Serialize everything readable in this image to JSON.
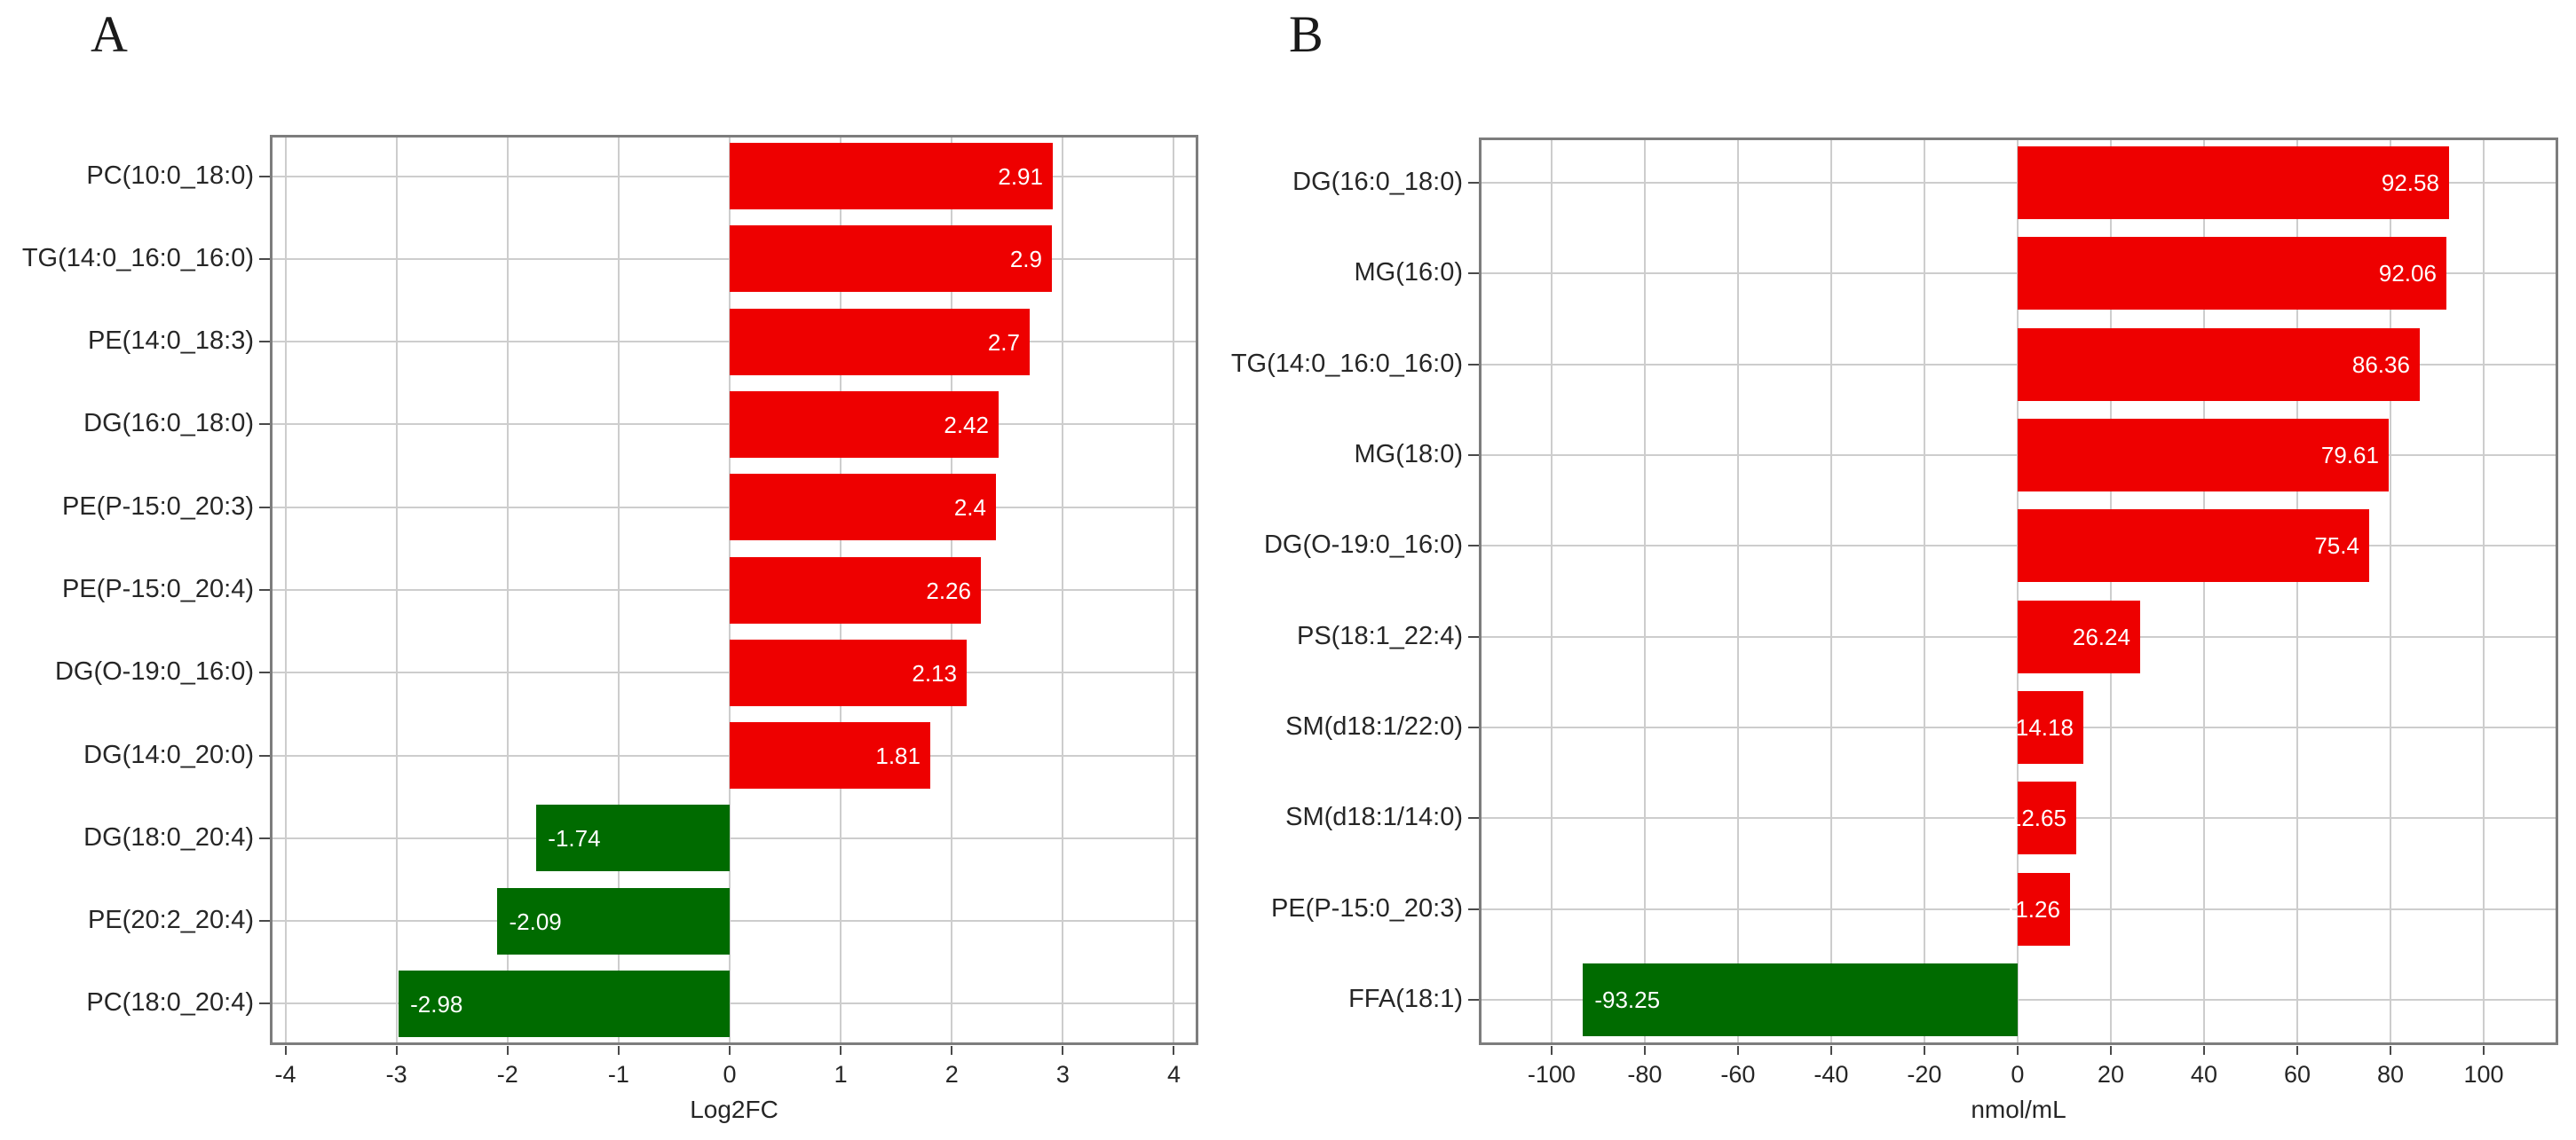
{
  "figure_type": "two-panel horizontal bar chart",
  "style": {
    "background_color": "#ffffff",
    "grid_color": "#cdcdcd",
    "frame_color": "#7d7d7d",
    "tick_color": "#4a4a4a",
    "text_color": "#262626",
    "bar_label_color": "#ffffff"
  },
  "chart_data": [
    {
      "type": "bar",
      "orientation": "horizontal",
      "title": "A",
      "xlabel": "Log2FC",
      "categories": [
        "PC(10:0_18:0)",
        "TG(14:0_16:0_16:0)",
        "PE(14:0_18:3)",
        "DG(16:0_18:0)",
        "PE(P-15:0_20:3)",
        "PE(P-15:0_20:4)",
        "DG(O-19:0_16:0)",
        "DG(14:0_20:0)",
        "DG(18:0_20:4)",
        "PE(20:2_20:4)",
        "PC(18:0_20:4)"
      ],
      "values": [
        2.91,
        2.9,
        2.7,
        2.42,
        2.4,
        2.26,
        2.13,
        1.81,
        -1.74,
        -2.09,
        -2.98
      ],
      "value_labels": [
        "2.91",
        "2.9",
        "2.7",
        "2.42",
        "2.4",
        "2.26",
        "2.13",
        "1.81",
        "-1.74",
        "-2.09",
        "-2.98"
      ],
      "x_ticks": [
        -4,
        -3,
        -2,
        -1,
        0,
        1,
        2,
        3,
        4
      ],
      "x_tick_labels": [
        "-4",
        "-3",
        "-2",
        "-1",
        "0",
        "1",
        "2",
        "3",
        "4"
      ],
      "xlim": [
        -4.14,
        4.22
      ],
      "grid": true,
      "legend_position": "none",
      "positive_color": "#ee0000",
      "negative_color": "#006b00"
    },
    {
      "type": "bar",
      "orientation": "horizontal",
      "title": "B",
      "xlabel": "nmol/mL",
      "categories": [
        "DG(16:0_18:0)",
        "MG(16:0)",
        "TG(14:0_16:0_16:0)",
        "MG(18:0)",
        "DG(O-19:0_16:0)",
        "PS(18:1_22:4)",
        "SM(d18:1/22:0)",
        "SM(d18:1/14:0)",
        "PE(P-15:0_20:3)",
        "FFA(18:1)"
      ],
      "values": [
        92.58,
        92.06,
        86.36,
        79.61,
        75.4,
        26.24,
        14.18,
        12.65,
        11.26,
        -93.25
      ],
      "value_labels": [
        "92.58",
        "92.06",
        "86.36",
        "79.61",
        "75.4",
        "26.24",
        "14.18",
        "12.65",
        "11.26",
        "-93.25"
      ],
      "x_ticks": [
        -100,
        -80,
        -60,
        -40,
        -20,
        0,
        20,
        40,
        60,
        80,
        100
      ],
      "x_tick_labels": [
        "-100",
        "-80",
        "-60",
        "-40",
        "-20",
        "0",
        "20",
        "40",
        "60",
        "80",
        "100"
      ],
      "xlim": [
        -115.6,
        116
      ],
      "grid": true,
      "legend_position": "none",
      "positive_color": "#ee0000",
      "negative_color": "#006b00"
    }
  ]
}
